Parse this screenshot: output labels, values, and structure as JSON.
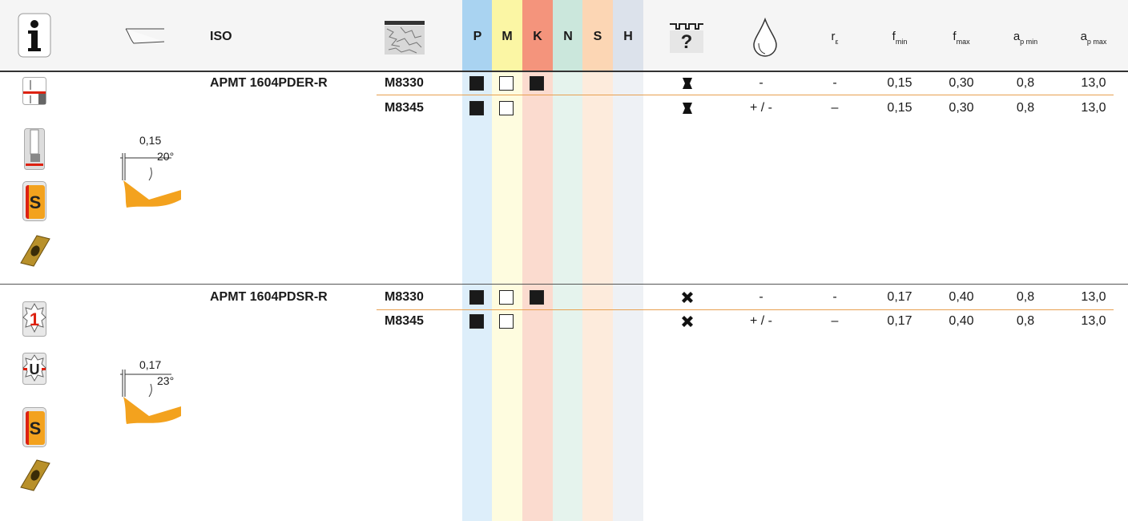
{
  "header": {
    "iso": "ISO",
    "materials": [
      "P",
      "M",
      "K",
      "N",
      "S",
      "H"
    ],
    "columns": [
      {
        "main": "r",
        "sub": "ε"
      },
      {
        "main": "f",
        "sub": "min"
      },
      {
        "main": "f",
        "sub": "max"
      },
      {
        "main": "a",
        "sub": "p min"
      },
      {
        "main": "a",
        "sub": "p max"
      }
    ]
  },
  "groups": [
    {
      "designation": "APMT 1604PDER-R",
      "badges": [
        "S"
      ],
      "chamfer": {
        "width": "0,15",
        "angle": "20°"
      },
      "rows": [
        {
          "grade": "M8330",
          "coolant": "-",
          "r": "-",
          "f_min": "0,15",
          "f_max": "0,30",
          "ap_min": "0,8",
          "ap_max": "13,0"
        },
        {
          "grade": "M8345",
          "coolant": "+ / -",
          "r": "–",
          "f_min": "0,15",
          "f_max": "0,30",
          "ap_min": "0,8",
          "ap_max": "13,0"
        }
      ]
    },
    {
      "designation": "APMT 1604PDSR-R",
      "badges": [
        "1",
        "U",
        "S"
      ],
      "chamfer": {
        "width": "0,17",
        "angle": "23°"
      },
      "rows": [
        {
          "grade": "M8330",
          "coolant": "-",
          "r": "-",
          "f_min": "0,17",
          "f_max": "0,40",
          "ap_min": "0,8",
          "ap_max": "13,0"
        },
        {
          "grade": "M8345",
          "coolant": "+ / -",
          "r": "–",
          "f_min": "0,17",
          "f_max": "0,40",
          "ap_min": "0,8",
          "ap_max": "13,0"
        }
      ]
    }
  ]
}
